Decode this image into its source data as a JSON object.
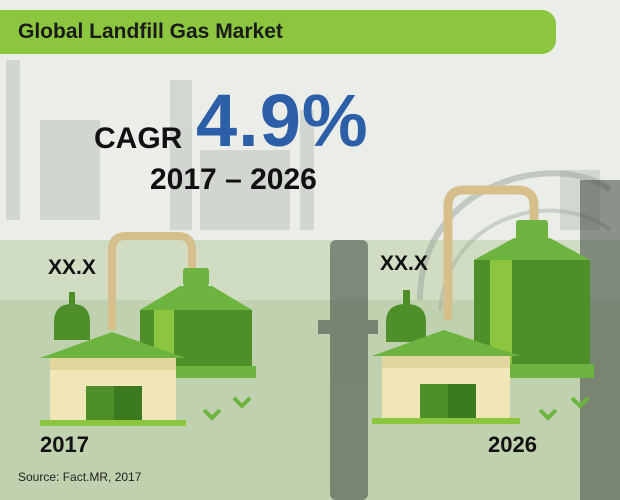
{
  "header": {
    "title": "Global Landfill Gas Market"
  },
  "cagr": {
    "label": "CAGR",
    "value": "4.9%",
    "period": "2017 – 2026"
  },
  "left_plant": {
    "value": "XX.X",
    "year": "2017"
  },
  "right_plant": {
    "value": "XX.X",
    "year": "2026"
  },
  "footer": {
    "source": "Source: Fact.MR, 2017"
  },
  "colors": {
    "banner": "#8cc63f",
    "cagr_value": "#2c5fa8",
    "plant_green_dark": "#4e8f2a",
    "plant_green": "#6db33f",
    "plant_green_light": "#8cc63f",
    "building_wall": "#f1e6b8",
    "pipe": "#d6bf8b"
  },
  "icons": [
    "biogas-plant-small",
    "biogas-plant-large",
    "check-chevron"
  ]
}
